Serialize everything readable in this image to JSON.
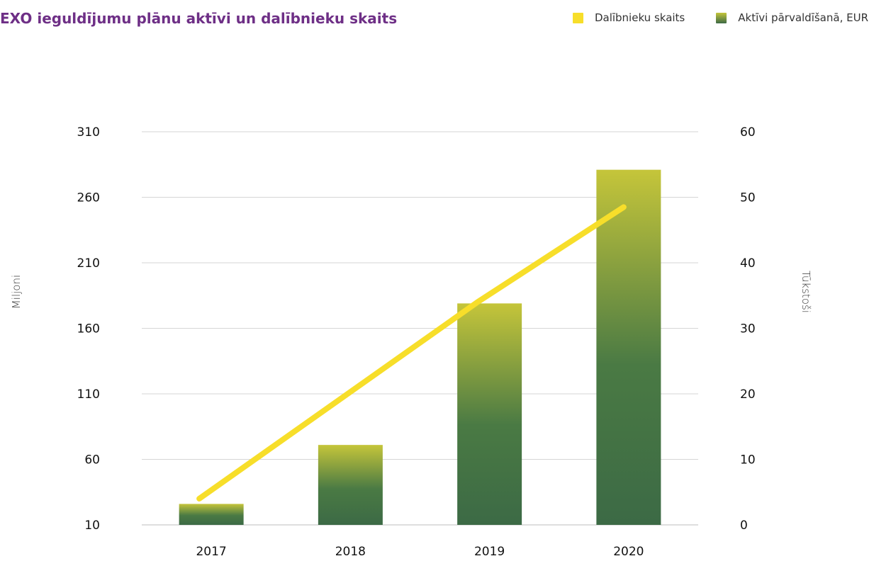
{
  "chart_data": {
    "type": "bar",
    "title": "EXO ieguldījumu plānu aktīvi un dalībnieku skaits",
    "categories": [
      "2017",
      "2018",
      "2019",
      "2020"
    ],
    "y_left": {
      "label": "Miljoni",
      "ticks": [
        10,
        60,
        110,
        160,
        210,
        260,
        310
      ],
      "lim": [
        10,
        310
      ]
    },
    "y_right": {
      "label": "Tūkstoši",
      "ticks": [
        0,
        10,
        20,
        30,
        40,
        50,
        60
      ],
      "lim": [
        0,
        60
      ]
    },
    "series": [
      {
        "name": "Aktīvi pārvaldīšanā, EUR",
        "type": "bar",
        "axis": "left",
        "values": [
          26,
          71,
          179,
          281
        ],
        "color_top": "#c5c53a",
        "color_bottom": "#3c6a45"
      },
      {
        "name": "Dalībnieku skaits",
        "type": "line",
        "axis": "right",
        "values": [
          4.0,
          19,
          34,
          48.5
        ],
        "color": "#f7de2a"
      }
    ],
    "grid": true,
    "legend_position": "top-right"
  }
}
